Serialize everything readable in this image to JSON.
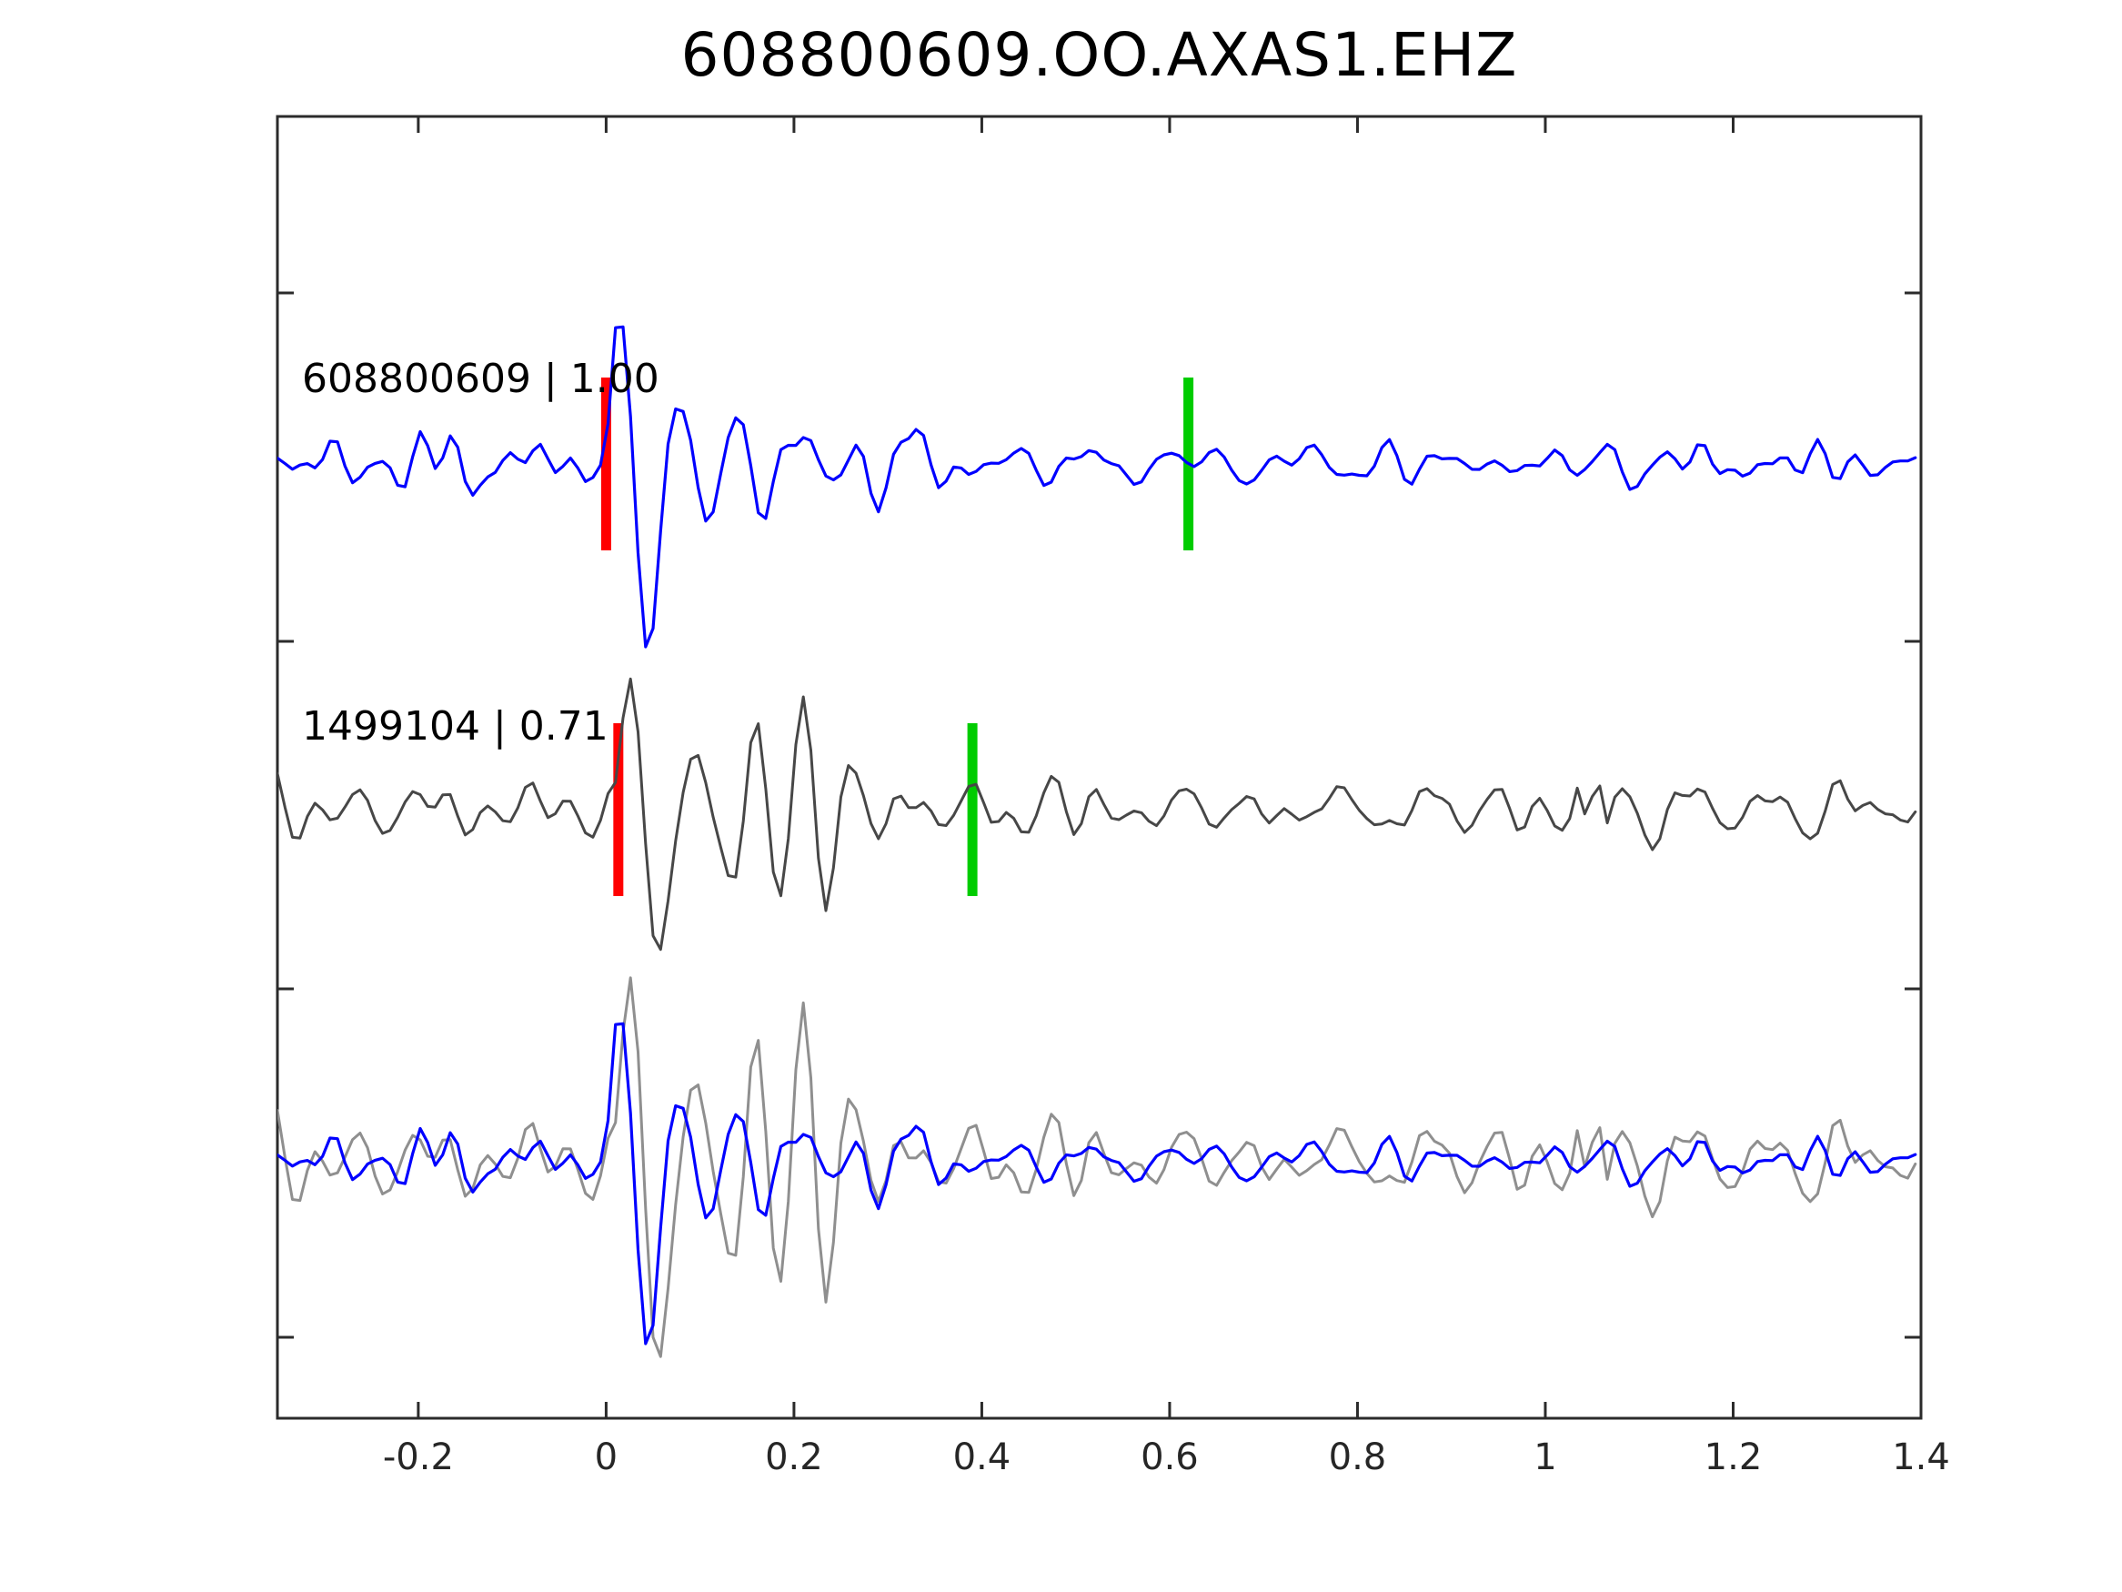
{
  "header": {
    "title": "608800609.OO.AXAS1.EHZ"
  },
  "chart_data": {
    "type": "line",
    "subtype": "seismogram-template-correlation",
    "title": "608800609.OO.AXAS1.EHZ",
    "xlabel": "",
    "ylabel": "",
    "xlim": [
      -0.35,
      1.4
    ],
    "x_ticks": [
      "-0.2",
      "0",
      "0.2",
      "0.4",
      "0.6",
      "0.8",
      "1",
      "1.2",
      "1.4"
    ],
    "x_tick_values": [
      -0.2,
      0,
      0.2,
      0.4,
      0.6,
      0.8,
      1.0,
      1.2,
      1.4
    ],
    "y_tick_labels": [],
    "grid": false,
    "legend": "none",
    "frame_color": "#2b2b2b",
    "rows": [
      {
        "label": "608800609 | 1.00",
        "trace_id": "608800609",
        "correlation": "1.00",
        "color": "#0000ff",
        "picks": [
          {
            "name": "pick-start",
            "color": "#ff0000",
            "x": 0.0
          },
          {
            "name": "pick-end",
            "color": "#00cc00",
            "x": 0.62
          }
        ]
      },
      {
        "label": "1499104 | 0.71",
        "trace_id": "1499104",
        "correlation": "0.71",
        "color": "#474747",
        "picks": [
          {
            "name": "pick-start",
            "color": "#ff0000",
            "x": 0.013
          },
          {
            "name": "pick-end",
            "color": "#00cc00",
            "x": 0.39
          }
        ]
      },
      {
        "label": "",
        "trace_id": "overlay",
        "series": [
          {
            "ref": 1,
            "color": "#8f8f8f",
            "scale": 1.4
          },
          {
            "ref": 0,
            "color": "#0000ff",
            "scale": 1.0
          }
        ],
        "picks": []
      }
    ],
    "synthesis": {
      "dt": 0.008,
      "traces": [
        {
          "seed": 1203,
          "noise_amp": 38,
          "freq_range": [
            7,
            34
          ],
          "n_components": 26,
          "arrival": {
            "t0": 0.0,
            "amp": 200,
            "period": 0.062,
            "decay": 0.105
          },
          "trough_boost": {
            "amp": -70,
            "offset": 0.047,
            "width": 0.022
          },
          "coda_noise": {
            "amp": 80,
            "decay": 0.22
          },
          "bursts": []
        },
        {
          "seed": 977,
          "noise_amp": 44,
          "freq_range": [
            7,
            34
          ],
          "n_components": 26,
          "arrival": {
            "t0": 0.013,
            "amp": 190,
            "period": 0.06,
            "decay": 0.085
          },
          "trough_boost": {
            "amp": -65,
            "offset": 0.045,
            "width": 0.02
          },
          "coda_noise": {
            "amp": 55,
            "decay": 0.3
          },
          "bursts": [
            {
              "center": 0.2,
              "width": 0.08,
              "amp": 100,
              "period": 0.05
            },
            {
              "center": 1.05,
              "width": 0.012,
              "amp": 60,
              "period": 0.024
            }
          ]
        }
      ]
    }
  }
}
